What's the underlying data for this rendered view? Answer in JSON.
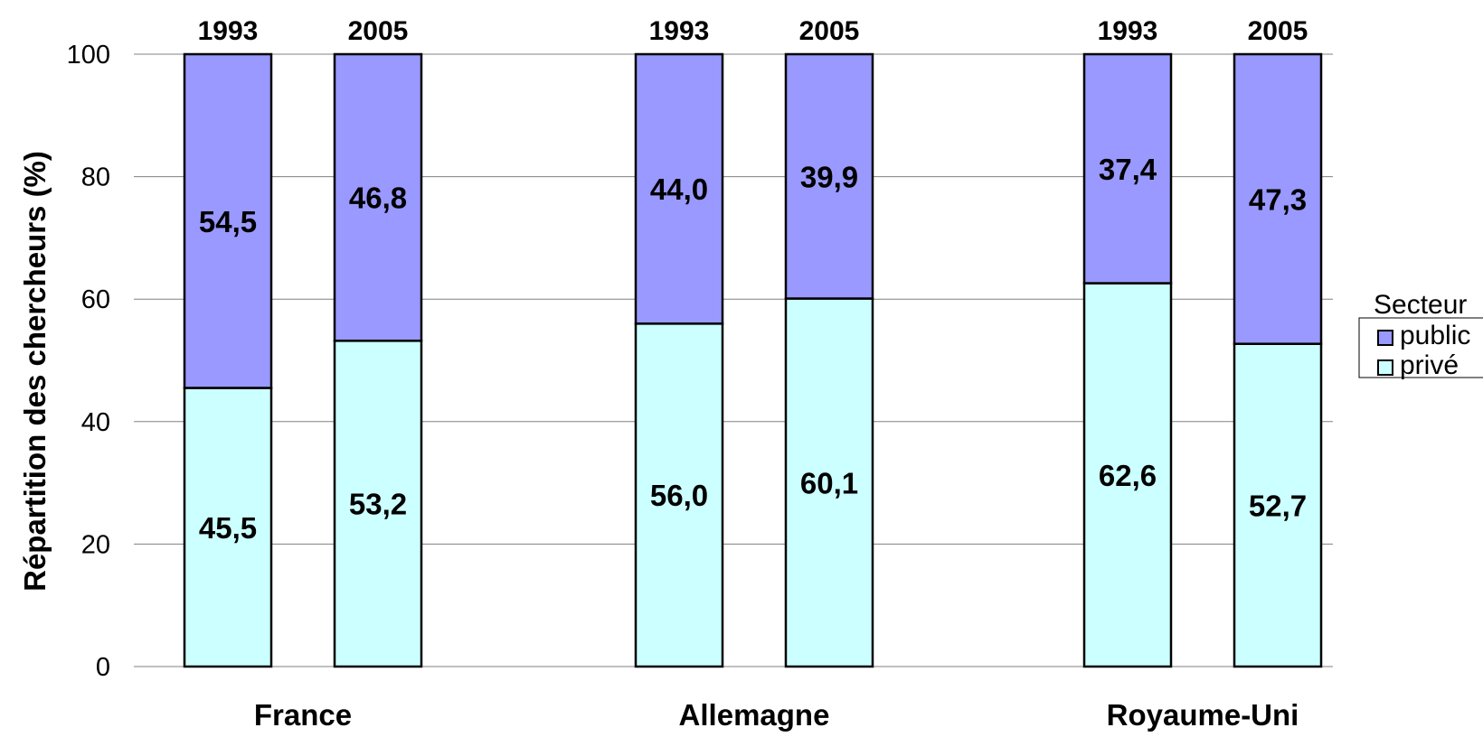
{
  "chart_data": {
    "type": "bar",
    "stacked": true,
    "ylabel": "Répartition des chercheurs (%)",
    "ylim": [
      0,
      100
    ],
    "yticks": [
      "0",
      "20",
      "40",
      "60",
      "80",
      "100"
    ],
    "grid": true,
    "groups": [
      "France",
      "Allemagne",
      "Royaume-Uni"
    ],
    "sub_categories": [
      "1993",
      "2005"
    ],
    "series": [
      {
        "name": "privé",
        "color": "#ccffff",
        "values": [
          [
            45.5,
            53.2
          ],
          [
            56.0,
            60.1
          ],
          [
            62.6,
            52.7
          ]
        ],
        "labels": [
          [
            "45,5",
            "53,2"
          ],
          [
            "56,0",
            "60,1"
          ],
          [
            "62,6",
            "52,7"
          ]
        ]
      },
      {
        "name": "public",
        "color": "#9999ff",
        "values": [
          [
            54.5,
            46.8
          ],
          [
            44.0,
            39.9
          ],
          [
            37.4,
            47.3
          ]
        ],
        "labels": [
          [
            "54,5",
            "46,8"
          ],
          [
            "44,0",
            "39,9"
          ],
          [
            "37,4",
            "47,3"
          ]
        ]
      }
    ],
    "legend": {
      "title": "Secteur",
      "position": "right",
      "entries": [
        {
          "label": "public",
          "color": "#9999ff"
        },
        {
          "label": "privé",
          "color": "#ccffff"
        }
      ]
    }
  }
}
